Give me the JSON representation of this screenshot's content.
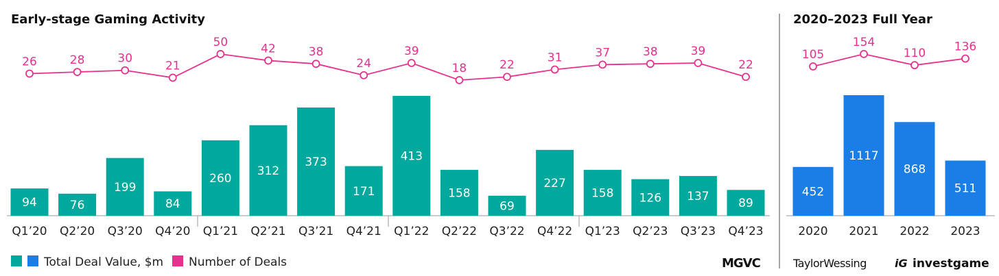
{
  "chart_data": [
    {
      "type": "bar+line",
      "title": "Early-stage Gaming Activity",
      "categories": [
        "Q1’20",
        "Q2’20",
        "Q3’20",
        "Q4’20",
        "Q1’21",
        "Q2’21",
        "Q3’21",
        "Q4’21",
        "Q1’22",
        "Q2’22",
        "Q3’22",
        "Q4’22",
        "Q1’23",
        "Q2’23",
        "Q3’23",
        "Q4’23"
      ],
      "series": [
        {
          "name": "Total Deal Value, $m",
          "type": "bar",
          "color": "#00a89d",
          "values": [
            94,
            76,
            199,
            84,
            260,
            312,
            373,
            171,
            413,
            158,
            69,
            227,
            158,
            126,
            137,
            89
          ]
        },
        {
          "name": "Number of Deals",
          "type": "line",
          "color": "#e8308f",
          "values": [
            26,
            28,
            30,
            21,
            50,
            42,
            38,
            24,
            39,
            18,
            22,
            31,
            37,
            38,
            39,
            22
          ]
        }
      ]
    },
    {
      "type": "bar+line",
      "title": "2020–2023 Full Year",
      "categories": [
        "2020",
        "2021",
        "2022",
        "2023"
      ],
      "series": [
        {
          "name": "Total Deal Value, $m",
          "type": "bar",
          "color": "#1a7ee6",
          "values": [
            452,
            1117,
            868,
            511
          ]
        },
        {
          "name": "Number of Deals",
          "type": "line",
          "color": "#e8308f",
          "values": [
            105,
            154,
            110,
            136
          ]
        }
      ]
    }
  ],
  "legend": {
    "bar_label": "Total Deal Value, $m",
    "line_label": "Number of Deals"
  },
  "logos": [
    "MGVC",
    "TaylorWessing",
    "investgame"
  ]
}
